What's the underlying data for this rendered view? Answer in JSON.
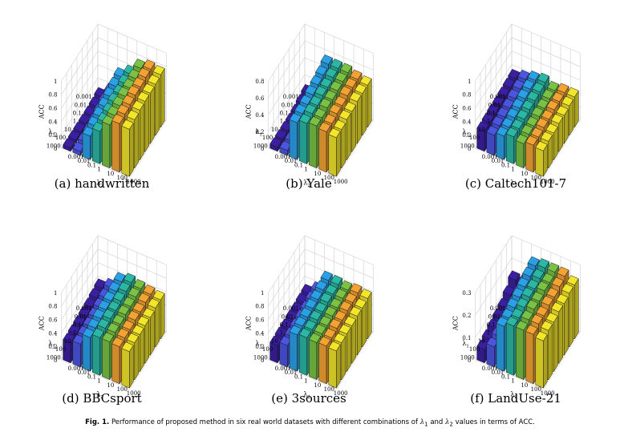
{
  "chart_data": [
    {
      "type": "bar3d",
      "caption": "(a) handwritten",
      "zlabel": "ACC",
      "xlabel": "λ",
      "x_sub": "1",
      "ylabel": "λ",
      "y_sub": "2",
      "x_categories": [
        "0.001",
        "0.01",
        "0.1",
        "1",
        "10",
        "100",
        "1000"
      ],
      "y_categories": [
        "0.001",
        "0.01",
        "0.1",
        "1",
        "10",
        "100",
        "1000"
      ],
      "zlim": [
        0,
        1
      ],
      "zticks": [
        "0",
        "0.2",
        "0.4",
        "0.6",
        "0.8",
        "1"
      ],
      "values": [
        [
          0.08,
          0.2,
          0.5,
          0.6,
          0.75,
          0.8,
          0.78
        ],
        [
          0.06,
          0.18,
          0.48,
          0.58,
          0.72,
          0.8,
          0.76
        ],
        [
          0.05,
          0.15,
          0.45,
          0.55,
          0.7,
          0.78,
          0.75
        ],
        [
          0.05,
          0.12,
          0.42,
          0.55,
          0.7,
          0.78,
          0.75
        ],
        [
          0.05,
          0.1,
          0.4,
          0.52,
          0.68,
          0.76,
          0.74
        ],
        [
          0.05,
          0.08,
          0.38,
          0.5,
          0.66,
          0.74,
          0.72
        ],
        [
          0.05,
          0.06,
          0.35,
          0.48,
          0.64,
          0.72,
          0.7
        ]
      ]
    },
    {
      "type": "bar3d",
      "caption": "(b) Yale",
      "zlabel": "ACC",
      "xlabel": "λ",
      "x_sub": "1",
      "ylabel": "λ",
      "y_sub": "2",
      "x_categories": [
        "0.001",
        "0.01",
        "0.1",
        "1",
        "10",
        "100",
        "1000"
      ],
      "y_categories": [
        "0.001",
        "0.01",
        "0.1",
        "1",
        "10",
        "100",
        "1000"
      ],
      "zlim": [
        0,
        0.8
      ],
      "zticks": [
        "0",
        "0.2",
        "0.4",
        "0.6",
        "0.8"
      ],
      "values": [
        [
          0.1,
          0.22,
          0.55,
          0.55,
          0.55,
          0.52,
          0.5
        ],
        [
          0.08,
          0.15,
          0.52,
          0.54,
          0.54,
          0.52,
          0.5
        ],
        [
          0.06,
          0.12,
          0.5,
          0.52,
          0.53,
          0.52,
          0.5
        ],
        [
          0.05,
          0.1,
          0.48,
          0.52,
          0.52,
          0.5,
          0.48
        ],
        [
          0.05,
          0.08,
          0.46,
          0.5,
          0.52,
          0.5,
          0.48
        ],
        [
          0.05,
          0.07,
          0.45,
          0.5,
          0.5,
          0.48,
          0.46
        ],
        [
          0.05,
          0.06,
          0.44,
          0.48,
          0.5,
          0.48,
          0.46
        ]
      ]
    },
    {
      "type": "bar3d",
      "caption": "(c) Caltech101-7",
      "zlabel": "ACC",
      "xlabel": "λ",
      "x_sub": "1",
      "ylabel": "λ",
      "y_sub": "2",
      "x_categories": [
        "0.001",
        "0.01",
        "0.1",
        "1",
        "10",
        "100",
        "1000"
      ],
      "y_categories": [
        "0.001",
        "0.01",
        "0.1",
        "1",
        "10",
        "100",
        "1000"
      ],
      "zlim": [
        0,
        1
      ],
      "zticks": [
        "0",
        "0.2",
        "0.4",
        "0.6",
        "0.8",
        "1"
      ],
      "values": [
        [
          0.35,
          0.4,
          0.45,
          0.48,
          0.42,
          0.45,
          0.45
        ],
        [
          0.34,
          0.38,
          0.44,
          0.46,
          0.42,
          0.44,
          0.44
        ],
        [
          0.33,
          0.36,
          0.42,
          0.45,
          0.4,
          0.44,
          0.42
        ],
        [
          0.32,
          0.34,
          0.4,
          0.44,
          0.4,
          0.42,
          0.42
        ],
        [
          0.32,
          0.33,
          0.38,
          0.42,
          0.38,
          0.42,
          0.4
        ],
        [
          0.31,
          0.32,
          0.36,
          0.4,
          0.38,
          0.4,
          0.4
        ],
        [
          0.3,
          0.3,
          0.35,
          0.4,
          0.36,
          0.4,
          0.38
        ]
      ]
    },
    {
      "type": "bar3d",
      "caption": "(d) BBCsport",
      "zlabel": "ACC",
      "xlabel": "λ",
      "x_sub": "1",
      "ylabel": "λ",
      "y_sub": "2",
      "x_categories": [
        "0.001",
        "0.01",
        "0.1",
        "1",
        "10",
        "100",
        "1000"
      ],
      "y_categories": [
        "0.001",
        "0.01",
        "0.1",
        "1",
        "10",
        "100",
        "1000"
      ],
      "zlim": [
        0,
        1
      ],
      "zticks": [
        "0",
        "0.2",
        "0.4",
        "0.6",
        "0.8",
        "1"
      ],
      "values": [
        [
          0.38,
          0.45,
          0.6,
          0.65,
          0.62,
          0.6,
          0.58
        ],
        [
          0.36,
          0.42,
          0.58,
          0.64,
          0.62,
          0.6,
          0.58
        ],
        [
          0.34,
          0.4,
          0.56,
          0.62,
          0.6,
          0.58,
          0.56
        ],
        [
          0.33,
          0.38,
          0.55,
          0.6,
          0.6,
          0.58,
          0.56
        ],
        [
          0.32,
          0.36,
          0.54,
          0.6,
          0.58,
          0.56,
          0.55
        ],
        [
          0.31,
          0.35,
          0.52,
          0.58,
          0.58,
          0.56,
          0.55
        ],
        [
          0.3,
          0.34,
          0.5,
          0.56,
          0.56,
          0.55,
          0.54
        ]
      ]
    },
    {
      "type": "bar3d",
      "caption": "(e) 3sources",
      "zlabel": "ACC",
      "xlabel": "λ",
      "x_sub": "1",
      "ylabel": "λ",
      "y_sub": "2",
      "x_categories": [
        "0.001",
        "0.01",
        "0.1",
        "1",
        "10",
        "100",
        "1000"
      ],
      "y_categories": [
        "0.001",
        "0.01",
        "0.1",
        "1",
        "10",
        "100",
        "1000"
      ],
      "zlim": [
        0,
        1
      ],
      "zticks": [
        "0",
        "0.2",
        "0.4",
        "0.6",
        "0.8",
        "1"
      ],
      "values": [
        [
          0.3,
          0.4,
          0.62,
          0.62,
          0.6,
          0.62,
          0.6
        ],
        [
          0.29,
          0.38,
          0.6,
          0.6,
          0.6,
          0.6,
          0.58
        ],
        [
          0.28,
          0.36,
          0.58,
          0.6,
          0.58,
          0.6,
          0.58
        ],
        [
          0.28,
          0.35,
          0.57,
          0.58,
          0.58,
          0.58,
          0.56
        ],
        [
          0.27,
          0.34,
          0.56,
          0.58,
          0.56,
          0.58,
          0.56
        ],
        [
          0.27,
          0.33,
          0.55,
          0.56,
          0.56,
          0.56,
          0.55
        ],
        [
          0.26,
          0.32,
          0.54,
          0.56,
          0.55,
          0.56,
          0.55
        ]
      ]
    },
    {
      "type": "bar3d",
      "caption": "(f) LandUse-21",
      "zlabel": "ACC",
      "xlabel": "λ",
      "x_sub": "1",
      "ylabel": "λ",
      "y_sub": "2",
      "x_categories": [
        "0.001",
        "0.01",
        "0.1",
        "1",
        "10",
        "100",
        "1000"
      ],
      "y_categories": [
        "0.001",
        "0.01",
        "0.1",
        "1",
        "10",
        "100",
        "1000"
      ],
      "zlim": [
        0,
        0.3
      ],
      "zticks": [
        "0",
        "0.1",
        "0.2",
        "0.3"
      ],
      "values": [
        [
          0.15,
          0.15,
          0.25,
          0.26,
          0.26,
          0.26,
          0.24
        ],
        [
          0.12,
          0.14,
          0.24,
          0.25,
          0.25,
          0.25,
          0.24
        ],
        [
          0.1,
          0.13,
          0.23,
          0.24,
          0.25,
          0.24,
          0.23
        ],
        [
          0.09,
          0.12,
          0.22,
          0.24,
          0.24,
          0.24,
          0.23
        ],
        [
          0.08,
          0.11,
          0.21,
          0.23,
          0.24,
          0.23,
          0.22
        ],
        [
          0.07,
          0.1,
          0.2,
          0.22,
          0.23,
          0.23,
          0.22
        ],
        [
          0.06,
          0.09,
          0.2,
          0.22,
          0.22,
          0.22,
          0.21
        ]
      ]
    }
  ],
  "figure_caption": {
    "label": "Fig. 1.",
    "text_before": "Performance of proposed method in six real world datasets with different combinations of",
    "sym1": "λ",
    "sub1": "1",
    "and": "and",
    "sym2": "λ",
    "sub2": "2",
    "text_after": "values in terms of ACC."
  },
  "colors": {
    "series_by_lambda2": [
      "#3b1fa3",
      "#4a55e0",
      "#2aa0e6",
      "#2ab8a4",
      "#79c244",
      "#f4a333",
      "#f2e52a"
    ],
    "edge": "#1a1a1a",
    "grid": "#cfcfcf"
  }
}
